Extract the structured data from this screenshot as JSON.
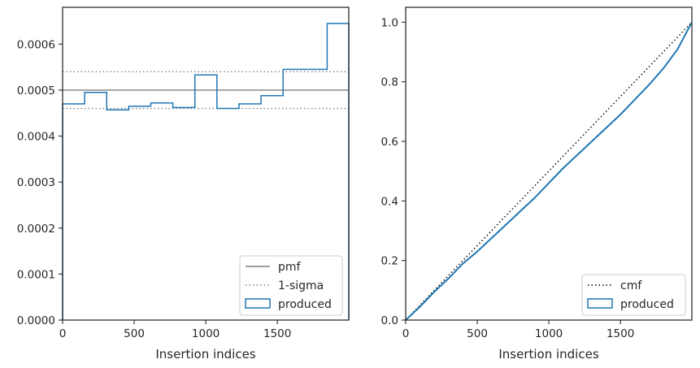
{
  "colors": {
    "produced": "#1f77b4",
    "reference": "#7f7f7f",
    "cmf": "#000000",
    "axes": "#262626"
  },
  "chart_data": [
    {
      "type": "step-histogram",
      "xlabel": "Insertion indices",
      "ylabel": "",
      "xlim": [
        0,
        1999
      ],
      "ylim": [
        0,
        0.00068
      ],
      "xticks": [
        0,
        500,
        1000,
        1500
      ],
      "xtick_labels": [
        "0",
        "500",
        "1000",
        "1500"
      ],
      "yticks": [
        0,
        0.0001,
        0.0002,
        0.0003,
        0.0004,
        0.0005,
        0.0006
      ],
      "ytick_labels": [
        "0.0000",
        "0.0001",
        "0.0002",
        "0.0003",
        "0.0004",
        "0.0005",
        "0.0006"
      ],
      "bin_edges": [
        0,
        154,
        308,
        462,
        616,
        770,
        924,
        1078,
        1232,
        1386,
        1540,
        1694,
        1848,
        1999
      ],
      "values": [
        0.00047,
        0.000495,
        0.000457,
        0.000465,
        0.000472,
        0.000462,
        0.000533,
        0.00046,
        0.00047,
        0.000488,
        0.000545,
        0.000545,
        0.000645
      ],
      "pmf": 0.0005,
      "sigma_band": [
        0.00046,
        0.00054
      ],
      "legend": {
        "position": "lower-right",
        "entries": [
          {
            "label": "pmf",
            "style": "solid-line"
          },
          {
            "label": "1-sigma",
            "style": "dotted-line"
          },
          {
            "label": "produced",
            "style": "box"
          }
        ]
      }
    },
    {
      "type": "line",
      "xlabel": "Insertion indices",
      "ylabel": "",
      "xlim": [
        0,
        1999
      ],
      "ylim": [
        0,
        1.05
      ],
      "xticks": [
        0,
        500,
        1000,
        1500
      ],
      "xtick_labels": [
        "0",
        "500",
        "1000",
        "1500"
      ],
      "yticks": [
        0,
        0.2,
        0.4,
        0.6,
        0.8,
        1.0
      ],
      "ytick_labels": [
        "0.0",
        "0.2",
        "0.4",
        "0.6",
        "0.8",
        "1.0"
      ],
      "series": [
        {
          "name": "cmf",
          "style": "dotted",
          "x": [
            0,
            1999
          ],
          "y": [
            0,
            1.0
          ]
        },
        {
          "name": "produced",
          "style": "solid",
          "x": [
            0,
            100,
            200,
            300,
            400,
            500,
            600,
            700,
            800,
            900,
            1000,
            1100,
            1200,
            1300,
            1400,
            1500,
            1600,
            1700,
            1800,
            1900,
            1999
          ],
          "y": [
            0,
            0.045,
            0.095,
            0.14,
            0.19,
            0.23,
            0.275,
            0.32,
            0.365,
            0.41,
            0.46,
            0.51,
            0.555,
            0.6,
            0.645,
            0.69,
            0.74,
            0.79,
            0.845,
            0.91,
            1.0
          ]
        }
      ],
      "legend": {
        "position": "lower-right",
        "entries": [
          {
            "label": "cmf",
            "style": "dotted-line"
          },
          {
            "label": "produced",
            "style": "box"
          }
        ]
      }
    }
  ]
}
